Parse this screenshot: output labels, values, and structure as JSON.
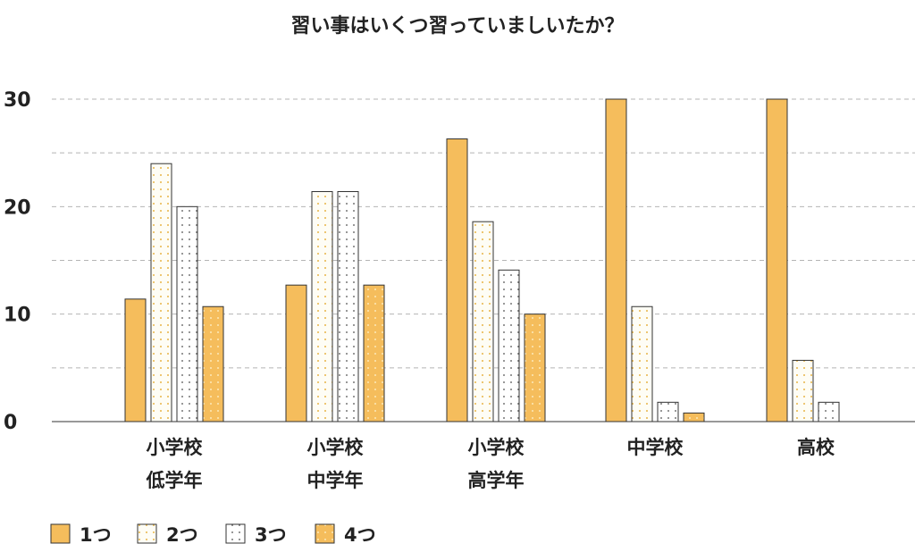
{
  "chart_data": {
    "type": "bar",
    "title": "習い事はいくつ習っていましいたか？",
    "categories": [
      [
        "小学校",
        "低学年"
      ],
      [
        "小学校",
        "中学年"
      ],
      [
        "小学校",
        "高学年"
      ],
      [
        "中学校"
      ],
      [
        "高校"
      ]
    ],
    "series": [
      {
        "name": "1つ",
        "values": [
          11.4,
          12.7,
          26.3,
          30,
          30
        ],
        "color": "#f5bd5c",
        "pattern": "solid"
      },
      {
        "name": "2つ",
        "values": [
          24,
          21.4,
          18.6,
          10.7,
          5.7
        ],
        "color": "#fefdf5",
        "pattern": "dots-gold"
      },
      {
        "name": "3つ",
        "values": [
          20,
          21.4,
          14.1,
          1.8,
          1.8
        ],
        "color": "#ffffff",
        "pattern": "dots-gray"
      },
      {
        "name": "4つ",
        "values": [
          10.7,
          12.7,
          10,
          0.8,
          0
        ],
        "color": "#f5bd5c",
        "pattern": "dots-on-gold"
      }
    ],
    "yticks": [
      "0",
      "10",
      "20",
      "30"
    ],
    "ylim": [
      0,
      30
    ],
    "grid": true,
    "legend": "bottom-left",
    "xlabel": "",
    "ylabel": ""
  }
}
